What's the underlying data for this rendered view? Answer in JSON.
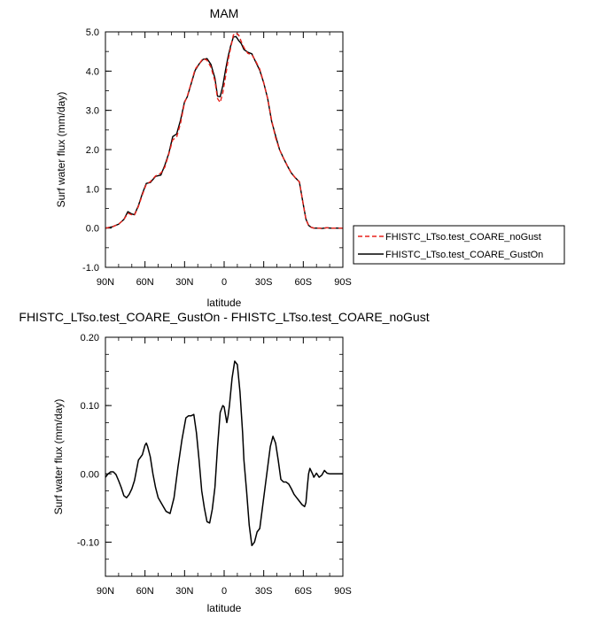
{
  "chart_data": [
    {
      "type": "line",
      "title": "MAM",
      "xlabel": "latitude",
      "ylabel": "Surf water flux (mm/day)",
      "xlim": [
        90,
        -90
      ],
      "ylim": [
        -1.0,
        5.0
      ],
      "x_ticks": [
        "90N",
        "60N",
        "30N",
        "0",
        "30S",
        "60S",
        "90S"
      ],
      "y_ticks": [
        "-1.0",
        "0.0",
        "1.0",
        "2.0",
        "3.0",
        "4.0",
        "5.0"
      ],
      "legend_position": "right",
      "colors": {
        "noGust": "#e8221b",
        "GustOn": "#000000"
      },
      "x": [
        90,
        85,
        80,
        76,
        73,
        70,
        68,
        65,
        62,
        59,
        56,
        52,
        48,
        45,
        42,
        39,
        36,
        33,
        30,
        28,
        25,
        22,
        19,
        16,
        13,
        10,
        7,
        5,
        3,
        1,
        -1,
        -3,
        -5,
        -7,
        -9,
        -11,
        -13,
        -15,
        -18,
        -21,
        -24,
        -27,
        -30,
        -33,
        -36,
        -39,
        -42,
        -45,
        -48,
        -51,
        -54,
        -57,
        -60,
        -62,
        -64,
        -66,
        -68,
        -70,
        -72,
        -74,
        -76,
        -78,
        -80,
        -83,
        -86,
        -90
      ],
      "series": [
        {
          "name": "FHISTC_LTso.test_COARE_noGust",
          "values": [
            0.0,
            0.03,
            0.1,
            0.22,
            0.38,
            0.34,
            0.33,
            0.55,
            0.85,
            1.12,
            1.18,
            1.33,
            1.4,
            1.55,
            1.88,
            2.25,
            2.32,
            2.68,
            3.2,
            3.35,
            3.7,
            4.05,
            4.18,
            4.32,
            4.28,
            4.1,
            3.75,
            3.3,
            3.2,
            3.45,
            3.85,
            4.28,
            4.6,
            4.92,
            4.97,
            4.92,
            4.75,
            4.6,
            4.45,
            4.42,
            4.25,
            4.05,
            3.7,
            3.3,
            2.75,
            2.3,
            2.0,
            1.78,
            1.58,
            1.4,
            1.28,
            1.18,
            0.6,
            0.22,
            0.07,
            0.02,
            0.0,
            0.0,
            0.0,
            -0.01,
            0.0,
            0.01,
            0.0,
            0.0,
            0.0,
            0.0
          ]
        },
        {
          "name": "FHISTC_LTso.test_COARE_GustOn",
          "values": [
            0.0,
            0.03,
            0.1,
            0.22,
            0.42,
            0.36,
            0.34,
            0.57,
            0.88,
            1.14,
            1.16,
            1.32,
            1.35,
            1.6,
            1.9,
            2.33,
            2.4,
            2.76,
            3.22,
            3.34,
            3.68,
            4.02,
            4.18,
            4.3,
            4.32,
            4.17,
            3.82,
            3.36,
            3.35,
            3.63,
            4.02,
            4.37,
            4.65,
            4.87,
            4.88,
            4.78,
            4.7,
            4.55,
            4.48,
            4.44,
            4.23,
            4.02,
            3.7,
            3.3,
            2.72,
            2.35,
            2.0,
            1.78,
            1.58,
            1.4,
            1.28,
            1.18,
            0.6,
            0.23,
            0.07,
            0.02,
            0.0,
            0.0,
            0.0,
            -0.01,
            0.0,
            0.01,
            0.0,
            0.0,
            0.0,
            0.0
          ]
        }
      ]
    },
    {
      "type": "line",
      "title": "FHISTC_LTso.test_COARE_GustOn - FHISTC_LTso.test_COARE_noGust",
      "xlabel": "latitude",
      "ylabel": "Surf water flux (mm/day)",
      "xlim": [
        90,
        -90
      ],
      "ylim": [
        -0.15,
        0.2
      ],
      "x_ticks": [
        "90N",
        "60N",
        "30N",
        "0",
        "30S",
        "60S",
        "90S"
      ],
      "y_ticks": [
        "-0.10",
        "0.00",
        "0.10",
        "0.20"
      ],
      "colors": {
        "diff": "#000000"
      },
      "x": [
        90,
        88,
        86,
        84,
        82,
        80,
        78,
        76,
        74,
        72,
        70,
        68,
        65,
        62,
        60,
        59,
        58,
        56,
        54,
        52,
        50,
        47,
        44,
        41,
        38,
        35,
        32,
        29,
        27,
        25,
        23,
        21,
        19,
        17,
        15,
        13,
        11,
        9,
        7,
        6,
        5,
        4,
        3,
        1,
        0,
        -2,
        -3,
        -4,
        -6,
        -8,
        -10,
        -12,
        -14,
        -15,
        -17,
        -19,
        -21,
        -23,
        -25,
        -27,
        -29,
        -31,
        -33,
        -35,
        -37,
        -39,
        -41,
        -43,
        -45,
        -47,
        -49,
        -51,
        -53,
        -55,
        -57,
        -59,
        -61,
        -62,
        -63,
        -64,
        -65,
        -66,
        -67,
        -68,
        -70,
        -72,
        -74,
        -76,
        -78,
        -80,
        -83,
        -86,
        -90
      ],
      "values": [
        -0.005,
        0.0,
        0.003,
        0.003,
        -0.001,
        -0.01,
        -0.02,
        -0.032,
        -0.035,
        -0.03,
        -0.022,
        -0.01,
        0.02,
        0.028,
        0.042,
        0.045,
        0.04,
        0.025,
        0.0,
        -0.02,
        -0.035,
        -0.045,
        -0.055,
        -0.058,
        -0.035,
        0.01,
        0.05,
        0.082,
        0.085,
        0.085,
        0.087,
        0.06,
        0.02,
        -0.025,
        -0.05,
        -0.07,
        -0.072,
        -0.052,
        -0.02,
        0.01,
        0.04,
        0.065,
        0.09,
        0.1,
        0.098,
        0.075,
        0.085,
        0.1,
        0.14,
        0.165,
        0.16,
        0.12,
        0.06,
        0.02,
        -0.025,
        -0.075,
        -0.105,
        -0.1,
        -0.085,
        -0.08,
        -0.05,
        -0.02,
        0.01,
        0.04,
        0.055,
        0.045,
        0.02,
        -0.008,
        -0.012,
        -0.012,
        -0.015,
        -0.022,
        -0.03,
        -0.035,
        -0.04,
        -0.045,
        -0.048,
        -0.042,
        -0.02,
        0.0,
        0.008,
        0.004,
        0.0,
        -0.005,
        0.001,
        -0.005,
        -0.002,
        0.005,
        0.001,
        0.0,
        0.0,
        0.0,
        0.0
      ]
    }
  ]
}
